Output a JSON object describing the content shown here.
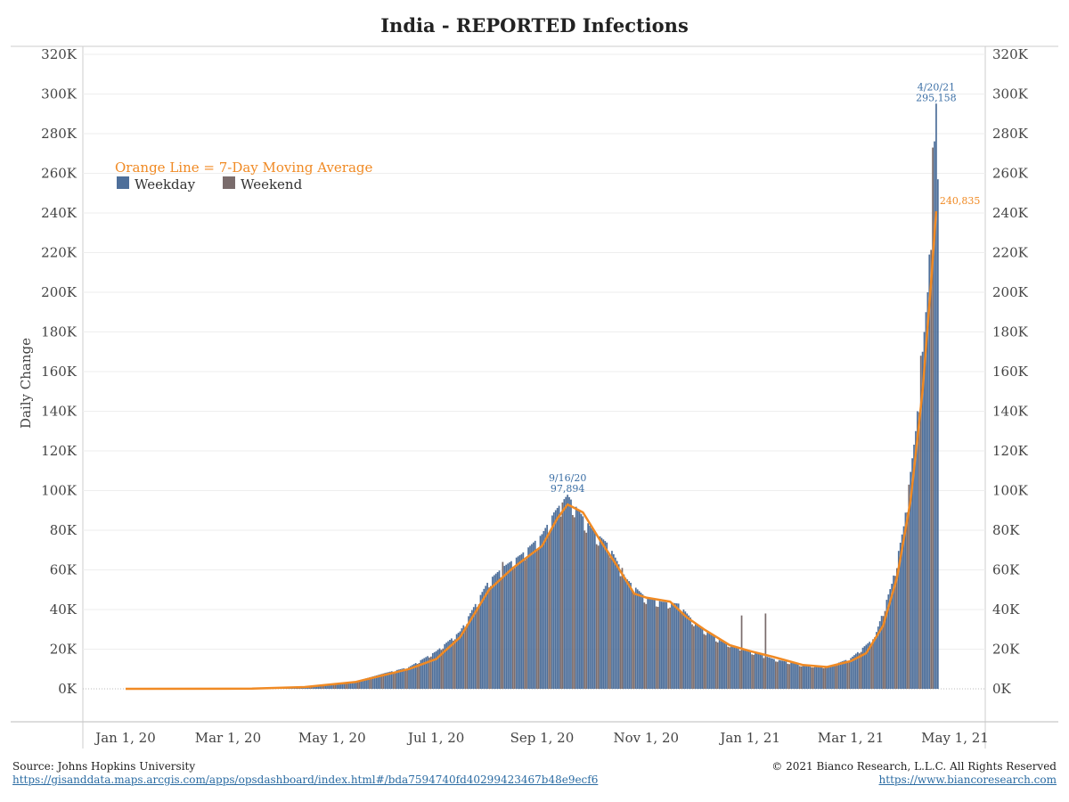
{
  "title": "India - REPORTED Infections",
  "chart_data": {
    "type": "bar",
    "title": "India - REPORTED Infections",
    "ylabel": "Daily Change",
    "ylim": [
      0,
      320000
    ],
    "y_ticks": [
      "0K",
      "20K",
      "40K",
      "60K",
      "80K",
      "100K",
      "120K",
      "140K",
      "160K",
      "180K",
      "200K",
      "220K",
      "240K",
      "260K",
      "280K",
      "300K",
      "320K"
    ],
    "y_tick_values": [
      0,
      20000,
      40000,
      60000,
      80000,
      100000,
      120000,
      140000,
      160000,
      180000,
      200000,
      220000,
      240000,
      260000,
      280000,
      300000,
      320000
    ],
    "x_ticks": [
      "Jan 1, 20",
      "Mar 1, 20",
      "May 1, 20",
      "Jul 1, 20",
      "Sep 1, 20",
      "Nov 1, 20",
      "Jan 1, 21",
      "Mar 1, 21",
      "May 1, 21"
    ],
    "x_tick_dates": [
      "2020-01-01",
      "2020-03-01",
      "2020-05-01",
      "2020-07-01",
      "2020-09-01",
      "2020-11-01",
      "2021-01-01",
      "2021-03-01",
      "2021-05-01"
    ],
    "x_range": [
      "2020-01-01",
      "2021-05-01"
    ],
    "legend": {
      "title": "Orange Line = 7-Day Moving Average",
      "items": [
        {
          "label": "Weekday",
          "color": "#4e6f9a"
        },
        {
          "label": "Weekend",
          "color": "#7a6c6c"
        }
      ],
      "placement": "top-left"
    },
    "series": [
      {
        "name": "Weekday",
        "color": "#4e6f9a",
        "points": [
          [
            "2020-03-16",
            150
          ],
          [
            "2020-04-01",
            400
          ],
          [
            "2020-04-15",
            1000
          ],
          [
            "2020-05-01",
            2000
          ],
          [
            "2020-05-15",
            3800
          ],
          [
            "2020-06-01",
            8000
          ],
          [
            "2020-06-15",
            11000
          ],
          [
            "2020-07-01",
            19000
          ],
          [
            "2020-07-15",
            29000
          ],
          [
            "2020-08-01",
            55000
          ],
          [
            "2020-08-10",
            62000
          ],
          [
            "2020-08-20",
            68000
          ],
          [
            "2020-09-01",
            78000
          ],
          [
            "2020-09-08",
            89000
          ],
          [
            "2020-09-16",
            97894
          ],
          [
            "2020-09-25",
            87000
          ],
          [
            "2020-10-01",
            80000
          ],
          [
            "2020-10-10",
            73000
          ],
          [
            "2020-10-20",
            56000
          ],
          [
            "2020-11-01",
            46000
          ],
          [
            "2020-11-10",
            44000
          ],
          [
            "2020-11-20",
            43000
          ],
          [
            "2020-12-01",
            32000
          ],
          [
            "2020-12-15",
            24000
          ],
          [
            "2021-01-01",
            19000
          ],
          [
            "2021-01-15",
            15000
          ],
          [
            "2021-02-01",
            12000
          ],
          [
            "2021-02-15",
            11000
          ],
          [
            "2021-03-01",
            15500
          ],
          [
            "2021-03-15",
            26000
          ],
          [
            "2021-03-25",
            53000
          ],
          [
            "2021-04-01",
            82000
          ],
          [
            "2021-04-08",
            130000
          ],
          [
            "2021-04-15",
            200000
          ],
          [
            "2021-04-20",
            295158
          ],
          [
            "2021-04-21",
            257000
          ]
        ]
      },
      {
        "name": "Weekend",
        "color": "#7a6c6c",
        "points": [
          [
            "2020-08-09",
            64000
          ],
          [
            "2020-09-13",
            94000
          ],
          [
            "2020-10-18",
            61000
          ],
          [
            "2020-11-15",
            41000
          ],
          [
            "2020-12-27",
            37000
          ],
          [
            "2021-01-10",
            38000
          ],
          [
            "2021-02-14",
            11500
          ],
          [
            "2021-03-14",
            25000
          ],
          [
            "2021-04-04",
            103000
          ],
          [
            "2021-04-11",
            168000
          ],
          [
            "2021-04-18",
            273000
          ]
        ]
      },
      {
        "name": "Orange Line = 7-Day Moving Average",
        "color": "#f08a24",
        "points": [
          [
            "2020-01-01",
            0
          ],
          [
            "2020-03-15",
            100
          ],
          [
            "2020-04-15",
            900
          ],
          [
            "2020-05-15",
            3500
          ],
          [
            "2020-06-15",
            10000
          ],
          [
            "2020-07-01",
            15000
          ],
          [
            "2020-07-15",
            26000
          ],
          [
            "2020-08-01",
            50000
          ],
          [
            "2020-08-15",
            61000
          ],
          [
            "2020-09-01",
            72000
          ],
          [
            "2020-09-10",
            86000
          ],
          [
            "2020-09-16",
            93000
          ],
          [
            "2020-09-25",
            89000
          ],
          [
            "2020-10-05",
            75000
          ],
          [
            "2020-10-15",
            62000
          ],
          [
            "2020-10-25",
            48000
          ],
          [
            "2020-11-01",
            46000
          ],
          [
            "2020-11-08",
            45000
          ],
          [
            "2020-11-15",
            44000
          ],
          [
            "2020-11-25",
            36000
          ],
          [
            "2020-12-05",
            30000
          ],
          [
            "2020-12-20",
            22000
          ],
          [
            "2021-01-01",
            19000
          ],
          [
            "2021-01-15",
            16000
          ],
          [
            "2021-02-01",
            12000
          ],
          [
            "2021-02-15",
            11000
          ],
          [
            "2021-03-01",
            14000
          ],
          [
            "2021-03-10",
            18000
          ],
          [
            "2021-03-20",
            32000
          ],
          [
            "2021-03-28",
            56000
          ],
          [
            "2021-04-05",
            95000
          ],
          [
            "2021-04-12",
            150000
          ],
          [
            "2021-04-17",
            205000
          ],
          [
            "2021-04-20",
            240835
          ]
        ]
      }
    ],
    "annotations": [
      {
        "date": "2020-09-16",
        "line1": "9/16/20",
        "line2": "97,894",
        "value": 97894
      },
      {
        "date": "2021-04-20",
        "line1": "4/20/21",
        "line2": "295,158",
        "value": 295158
      },
      {
        "date": "2021-04-20",
        "line1": "240,835",
        "value": 240835
      }
    ]
  },
  "footer": {
    "source": "Source: Johns Hopkins University",
    "source_url": "https://gisanddata.maps.arcgis.com/apps/opsdashboard/index.html#/bda7594740fd40299423467b48e9ecf6",
    "copyright": "© 2021 Bianco Research, L.L.C. All Rights Reserved",
    "site_url": "https://www.biancoresearch.com"
  }
}
